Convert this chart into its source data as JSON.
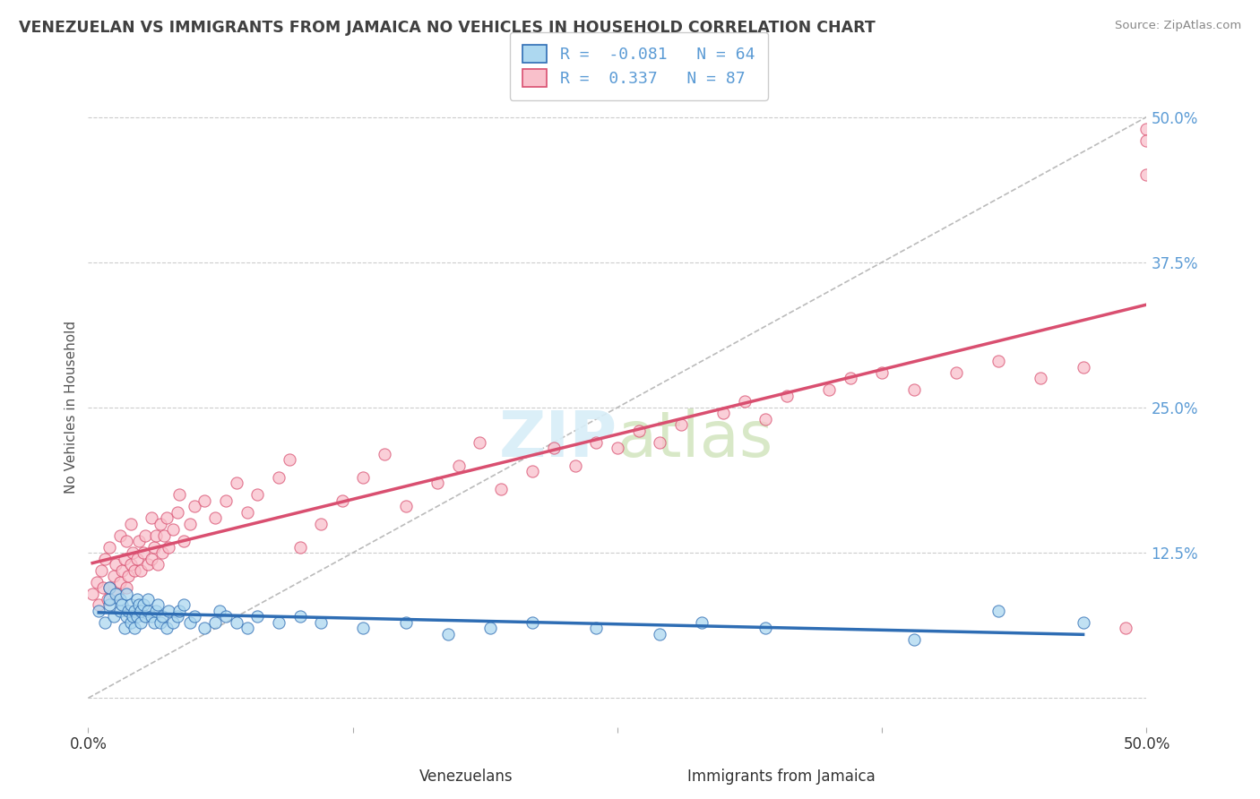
{
  "title": "VENEZUELAN VS IMMIGRANTS FROM JAMAICA NO VEHICLES IN HOUSEHOLD CORRELATION CHART",
  "source": "Source: ZipAtlas.com",
  "xlabel_venezuelans": "Venezuelans",
  "xlabel_jamaica": "Immigrants from Jamaica",
  "ylabel": "No Vehicles in Household",
  "r_venezuelan": -0.081,
  "n_venezuelan": 64,
  "r_jamaica": 0.337,
  "n_jamaica": 87,
  "xlim": [
    0,
    0.5
  ],
  "ylim": [
    -0.025,
    0.525
  ],
  "yticks": [
    0.0,
    0.125,
    0.25,
    0.375,
    0.5
  ],
  "ytick_labels": [
    "",
    "12.5%",
    "25.0%",
    "37.5%",
    "50.0%"
  ],
  "xtick_labels_show": [
    "0.0%",
    "50.0%"
  ],
  "xticks_show": [
    0.0,
    0.5
  ],
  "xticks_minor": [
    0.125,
    0.25,
    0.375
  ],
  "color_venezuelan": "#ADD8F0",
  "color_jamaica": "#F9C0CB",
  "trend_venezuelan": "#2E6DB4",
  "trend_jamaica": "#D94F70",
  "ref_line_color": "#BBBBBB",
  "grid_color": "#CCCCCC",
  "title_color": "#404040",
  "axis_label_color": "#5B9BD5",
  "tick_label_color": "#333333",
  "watermark_color": "#D8EEF8",
  "venezuelan_x": [
    0.005,
    0.008,
    0.01,
    0.01,
    0.01,
    0.012,
    0.013,
    0.015,
    0.015,
    0.016,
    0.017,
    0.018,
    0.018,
    0.019,
    0.02,
    0.02,
    0.021,
    0.022,
    0.022,
    0.023,
    0.023,
    0.024,
    0.025,
    0.025,
    0.026,
    0.027,
    0.028,
    0.028,
    0.03,
    0.031,
    0.032,
    0.033,
    0.034,
    0.035,
    0.037,
    0.038,
    0.04,
    0.042,
    0.043,
    0.045,
    0.048,
    0.05,
    0.055,
    0.06,
    0.062,
    0.065,
    0.07,
    0.075,
    0.08,
    0.09,
    0.1,
    0.11,
    0.13,
    0.15,
    0.17,
    0.19,
    0.21,
    0.24,
    0.27,
    0.29,
    0.32,
    0.39,
    0.43,
    0.47
  ],
  "venezuelan_y": [
    0.075,
    0.065,
    0.08,
    0.085,
    0.095,
    0.07,
    0.09,
    0.075,
    0.085,
    0.08,
    0.06,
    0.07,
    0.09,
    0.075,
    0.08,
    0.065,
    0.07,
    0.06,
    0.075,
    0.07,
    0.085,
    0.08,
    0.065,
    0.075,
    0.08,
    0.07,
    0.075,
    0.085,
    0.07,
    0.065,
    0.075,
    0.08,
    0.065,
    0.07,
    0.06,
    0.075,
    0.065,
    0.07,
    0.075,
    0.08,
    0.065,
    0.07,
    0.06,
    0.065,
    0.075,
    0.07,
    0.065,
    0.06,
    0.07,
    0.065,
    0.07,
    0.065,
    0.06,
    0.065,
    0.055,
    0.06,
    0.065,
    0.06,
    0.055,
    0.065,
    0.06,
    0.05,
    0.075,
    0.065
  ],
  "jamaica_x": [
    0.002,
    0.004,
    0.005,
    0.006,
    0.007,
    0.008,
    0.009,
    0.01,
    0.01,
    0.012,
    0.013,
    0.014,
    0.015,
    0.015,
    0.016,
    0.017,
    0.018,
    0.018,
    0.019,
    0.02,
    0.02,
    0.021,
    0.022,
    0.023,
    0.024,
    0.025,
    0.026,
    0.027,
    0.028,
    0.03,
    0.03,
    0.031,
    0.032,
    0.033,
    0.034,
    0.035,
    0.036,
    0.037,
    0.038,
    0.04,
    0.042,
    0.043,
    0.045,
    0.048,
    0.05,
    0.055,
    0.06,
    0.065,
    0.07,
    0.075,
    0.08,
    0.09,
    0.095,
    0.1,
    0.11,
    0.12,
    0.13,
    0.14,
    0.15,
    0.165,
    0.175,
    0.185,
    0.195,
    0.21,
    0.22,
    0.23,
    0.24,
    0.25,
    0.26,
    0.27,
    0.28,
    0.3,
    0.31,
    0.32,
    0.33,
    0.35,
    0.36,
    0.375,
    0.39,
    0.41,
    0.43,
    0.45,
    0.47,
    0.49,
    0.5,
    0.5,
    0.5
  ],
  "jamaica_y": [
    0.09,
    0.1,
    0.08,
    0.11,
    0.095,
    0.12,
    0.085,
    0.095,
    0.13,
    0.105,
    0.115,
    0.09,
    0.1,
    0.14,
    0.11,
    0.12,
    0.095,
    0.135,
    0.105,
    0.115,
    0.15,
    0.125,
    0.11,
    0.12,
    0.135,
    0.11,
    0.125,
    0.14,
    0.115,
    0.12,
    0.155,
    0.13,
    0.14,
    0.115,
    0.15,
    0.125,
    0.14,
    0.155,
    0.13,
    0.145,
    0.16,
    0.175,
    0.135,
    0.15,
    0.165,
    0.17,
    0.155,
    0.17,
    0.185,
    0.16,
    0.175,
    0.19,
    0.205,
    0.13,
    0.15,
    0.17,
    0.19,
    0.21,
    0.165,
    0.185,
    0.2,
    0.22,
    0.18,
    0.195,
    0.215,
    0.2,
    0.22,
    0.215,
    0.23,
    0.22,
    0.235,
    0.245,
    0.255,
    0.24,
    0.26,
    0.265,
    0.275,
    0.28,
    0.265,
    0.28,
    0.29,
    0.275,
    0.285,
    0.06,
    0.49,
    0.48,
    0.45
  ]
}
